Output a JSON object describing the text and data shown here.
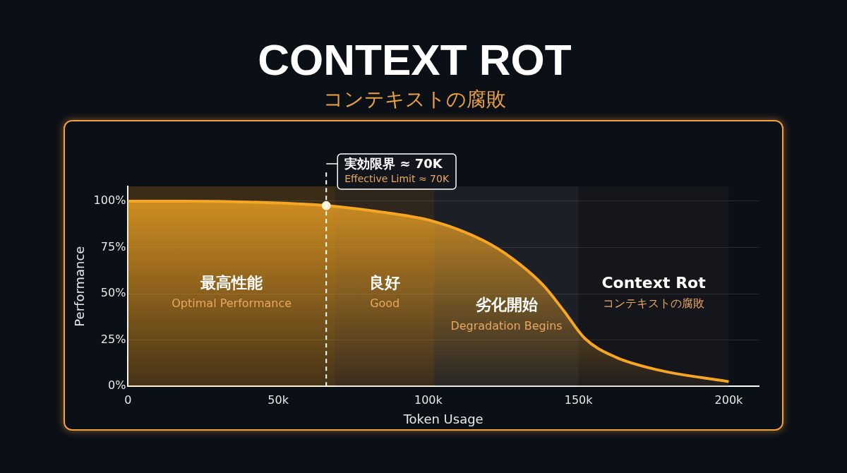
{
  "chart_data": {
    "type": "area",
    "title": "CONTEXT ROT",
    "subtitle": "コンテキストの腐敗",
    "xlabel": "Token Usage",
    "ylabel": "Performance",
    "xlim": [
      0,
      210
    ],
    "xticks": [
      0,
      {
        "value": 50,
        "label": "50k"
      },
      {
        "value": 100,
        "label": "100k"
      },
      {
        "value": 150,
        "label": "150k"
      },
      {
        "value": 200,
        "label": "200k"
      }
    ],
    "ylim": [
      0,
      108
    ],
    "yticks": [
      {
        "value": 0,
        "label": "0%"
      },
      {
        "value": 25,
        "label": "25%"
      },
      {
        "value": 50,
        "label": "50%"
      },
      {
        "value": 75,
        "label": "75%"
      },
      {
        "value": 100,
        "label": "100%"
      }
    ],
    "grid": "y",
    "legend": false,
    "series": [
      {
        "color": "#f5a623",
        "x": [
          0,
          20,
          40,
          66,
          85,
          102,
          118,
          128,
          138,
          145,
          152,
          162,
          176,
          200
        ],
        "values": [
          100,
          100,
          99.5,
          97.6,
          94,
          89,
          79,
          69,
          55,
          41,
          26,
          16,
          9,
          2.5
        ]
      },
      {
        "type": "scatter",
        "color": "#fff3d6",
        "marker": "circle",
        "x": [
          66
        ],
        "values": [
          97.6
        ]
      }
    ],
    "bands": [
      {
        "axis": "x",
        "from": 0,
        "to": 69,
        "label": "最高性能\nOptimal Performance",
        "color": "#e8951a"
      },
      {
        "axis": "x",
        "from": 69,
        "to": 102,
        "label": "良好\nGood",
        "color": "#b07a3a"
      },
      {
        "axis": "x",
        "from": 102,
        "to": 150,
        "label": "劣化開始\nDegradation Begins",
        "color": "#5a5a5e"
      },
      {
        "axis": "x",
        "from": 150,
        "to": 200,
        "label": "Context Rot\nコンテキストの腐敗",
        "color": "#3a3030"
      }
    ],
    "ref_lines": [
      {
        "axis": "x",
        "value": 66,
        "label": "実効限界 ≈ 70K\nEffective Limit ≈ 70K",
        "color": "#ffffff",
        "line_style": "dashed"
      }
    ]
  }
}
